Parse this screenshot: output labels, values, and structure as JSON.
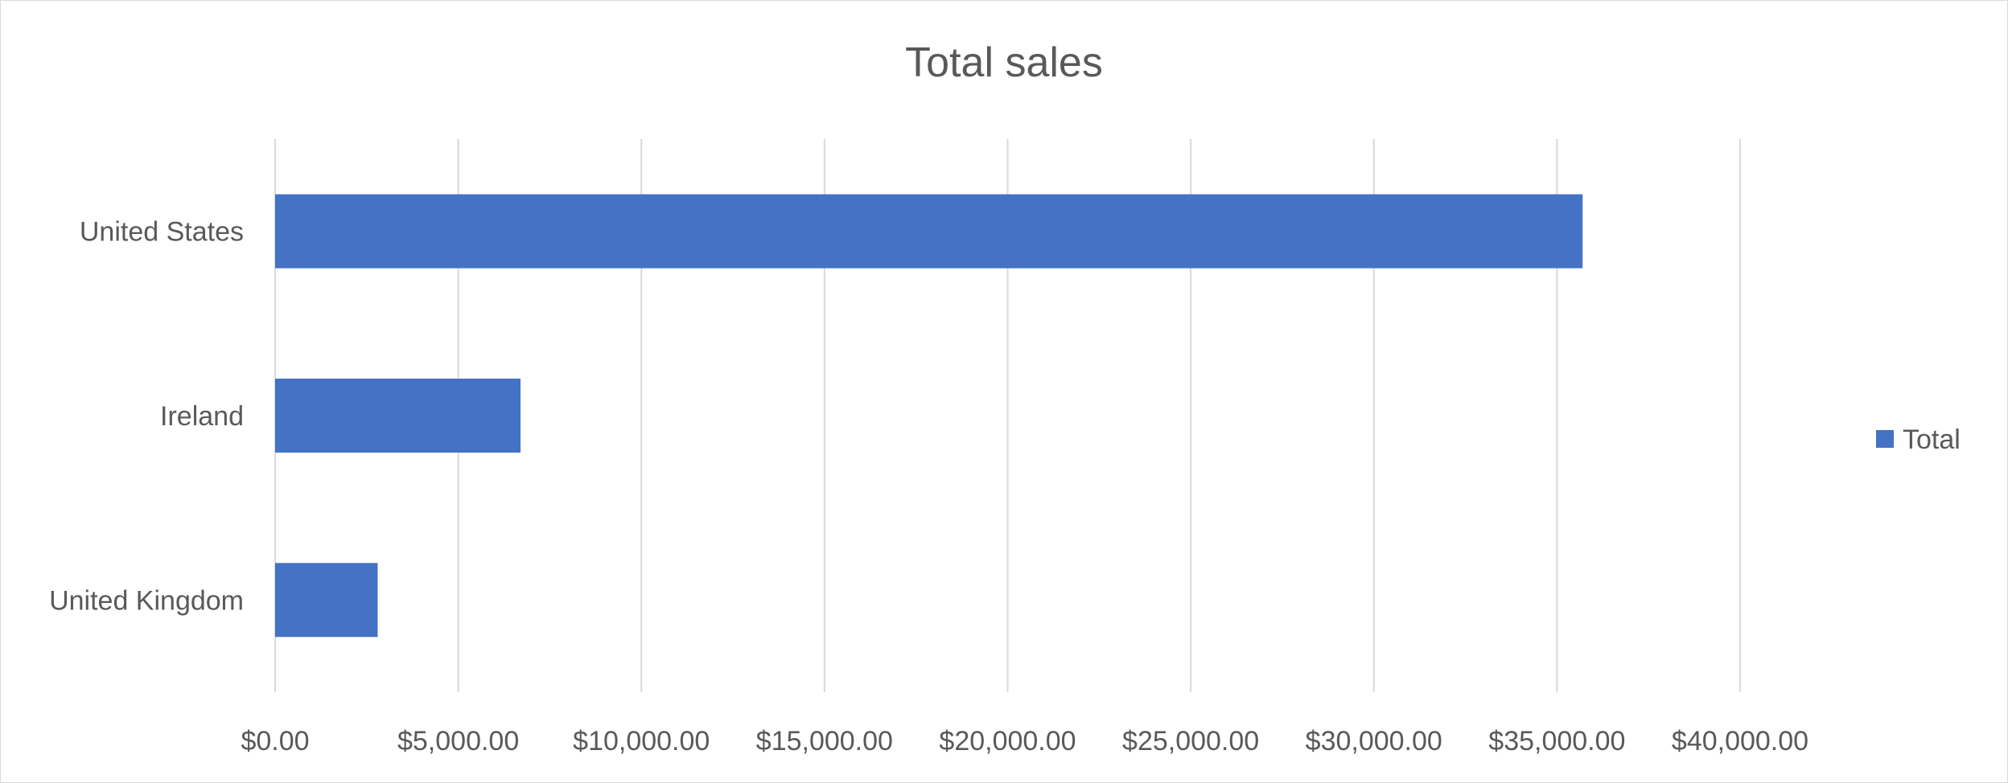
{
  "chart_data": {
    "type": "bar",
    "orientation": "horizontal",
    "title": "Total sales",
    "xlabel": "",
    "ylabel": "",
    "categories": [
      "United States",
      "Ireland",
      "United Kingdom"
    ],
    "series": [
      {
        "name": "Total",
        "color": "#4472c4",
        "values": [
          35700,
          6700,
          2800
        ]
      }
    ],
    "xlim": [
      0,
      40000
    ],
    "xticks": [
      0,
      5000,
      10000,
      15000,
      20000,
      25000,
      30000,
      35000,
      40000
    ],
    "xtick_labels": [
      "$0.00",
      "$5,000.00",
      "$10,000.00",
      "$15,000.00",
      "$20,000.00",
      "$25,000.00",
      "$30,000.00",
      "$35,000.00",
      "$40,000.00"
    ],
    "grid": "vertical",
    "legend_position": "right"
  }
}
